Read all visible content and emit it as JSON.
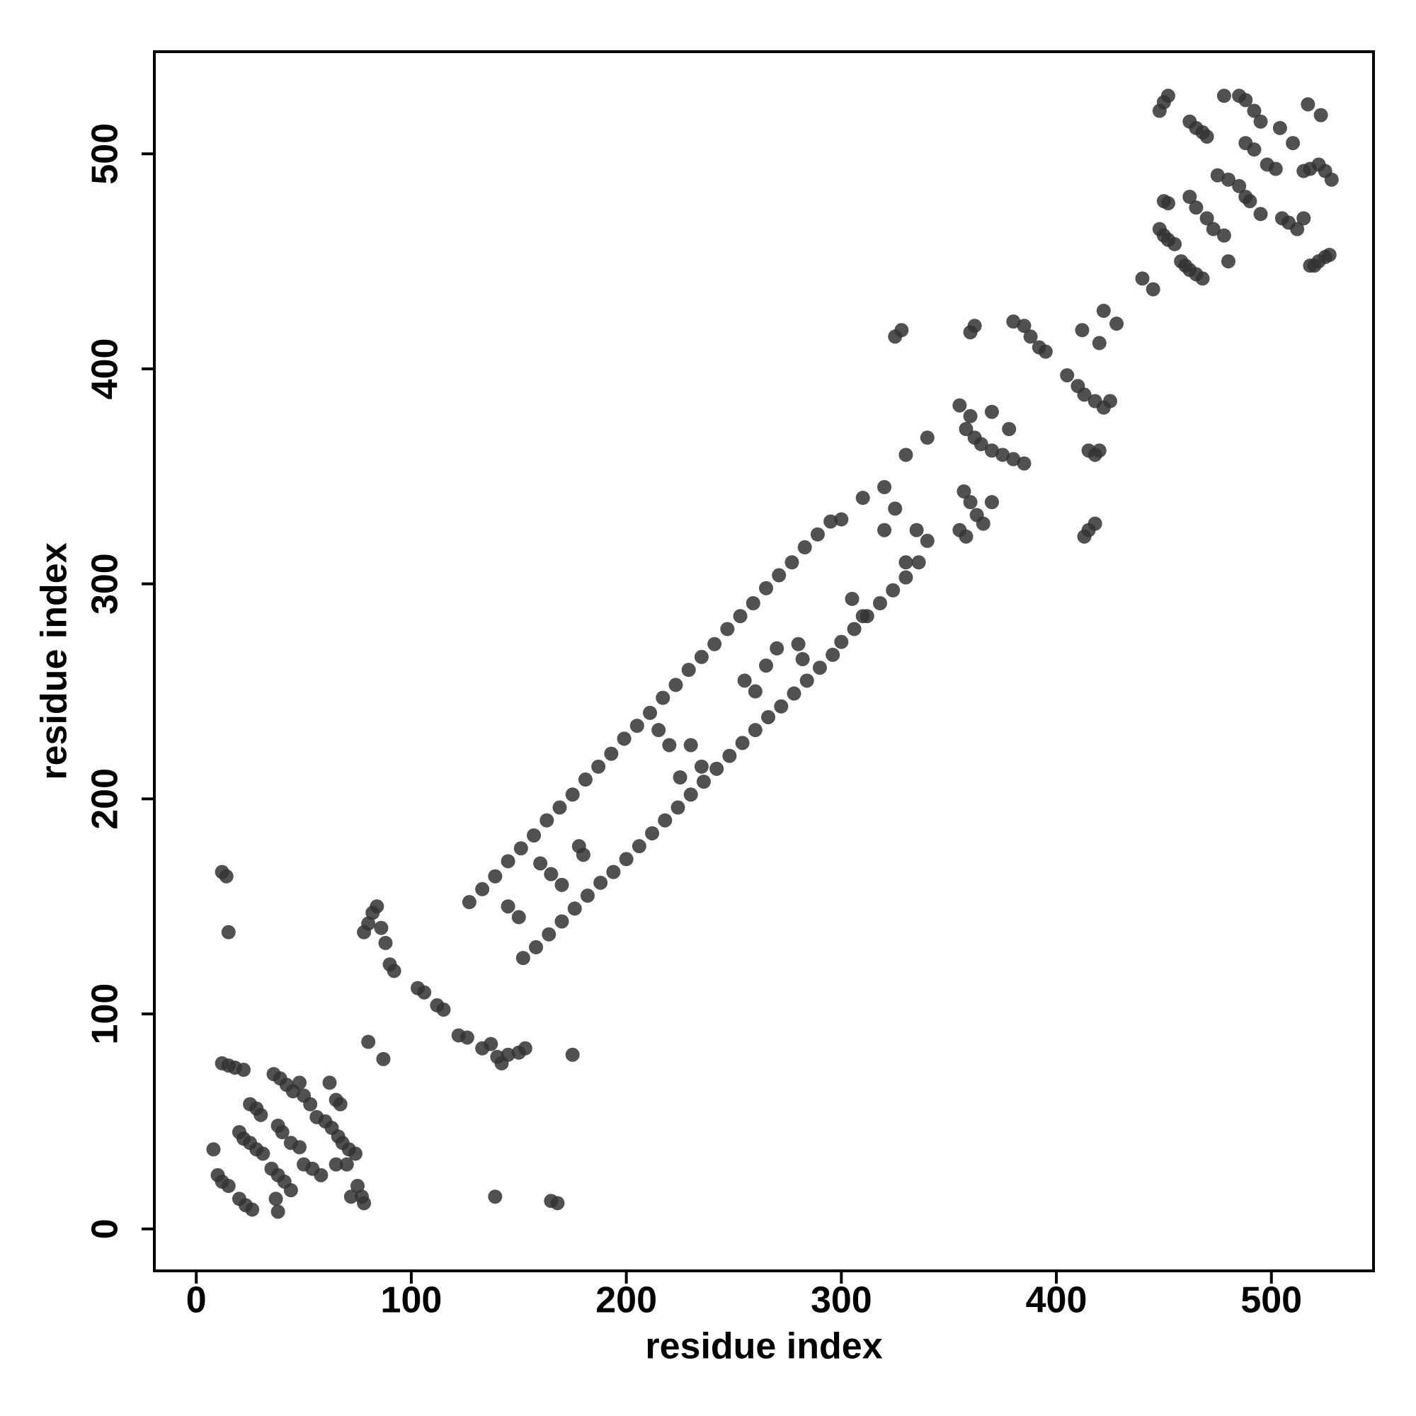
{
  "chart_data": {
    "type": "scatter",
    "x_label": "residue index",
    "y_label": "residue index",
    "color": "#333333",
    "xlim": [
      -19.5,
      547.5
    ],
    "ylim": [
      -19.5,
      547.5
    ],
    "xticks": [
      0,
      100,
      200,
      300,
      400,
      500
    ],
    "yticks": [
      0,
      100,
      200,
      300,
      400,
      500
    ],
    "x": [
      10,
      12,
      15,
      20,
      23,
      26,
      12,
      15,
      18,
      22,
      22,
      25,
      28,
      31,
      25,
      28,
      30,
      35,
      38,
      41,
      44,
      36,
      39,
      42,
      45,
      48,
      50,
      53,
      56,
      60,
      63,
      66,
      68,
      71,
      74,
      38,
      40,
      44,
      48,
      50,
      54,
      58,
      62,
      65,
      67,
      75,
      77,
      78,
      72,
      8,
      20,
      38,
      37,
      65,
      70,
      12,
      14,
      15,
      80,
      87,
      139,
      165,
      168,
      175,
      78,
      80,
      82,
      84,
      86,
      88,
      90,
      92,
      103,
      106,
      112,
      115,
      122,
      126,
      133,
      137,
      140,
      142,
      145,
      150,
      153,
      127,
      133,
      139,
      145,
      151,
      157,
      163,
      169,
      175,
      181,
      187,
      193,
      199,
      205,
      211,
      217,
      223,
      229,
      235,
      241,
      247,
      253,
      259,
      265,
      271,
      277,
      283,
      289,
      295,
      300,
      310,
      320,
      330,
      340,
      152,
      158,
      164,
      170,
      176,
      182,
      188,
      194,
      200,
      206,
      212,
      218,
      224,
      230,
      236,
      242,
      248,
      254,
      260,
      266,
      272,
      278,
      284,
      290,
      296,
      300,
      306,
      312,
      318,
      324,
      330,
      336,
      340,
      145,
      150,
      160,
      165,
      170,
      178,
      180,
      215,
      220,
      225,
      230,
      235,
      255,
      260,
      265,
      270,
      280,
      282,
      305,
      310,
      320,
      325,
      330,
      335,
      355,
      360,
      358,
      362,
      365,
      370,
      375,
      380,
      385,
      357,
      360,
      363,
      366,
      370,
      355,
      358,
      360,
      362,
      380,
      385,
      388,
      392,
      395,
      325,
      328,
      370,
      378,
      405,
      410,
      413,
      418,
      422,
      425,
      420,
      412,
      422,
      428,
      415,
      420,
      418,
      415,
      418,
      413,
      440,
      445,
      448,
      450,
      452,
      455,
      458,
      460,
      462,
      465,
      468,
      450,
      452,
      448,
      450,
      452,
      462,
      465,
      468,
      470,
      462,
      465,
      470,
      473,
      478,
      475,
      480,
      485,
      488,
      490,
      478,
      485,
      488,
      492,
      495,
      488,
      492,
      498,
      502,
      505,
      508,
      512,
      515,
      518,
      522,
      525,
      528,
      518,
      520,
      522,
      525,
      527,
      515,
      504,
      510,
      517,
      523,
      480,
      495
    ],
    "y": [
      25,
      22,
      20,
      14,
      11,
      9,
      77,
      76,
      75,
      74,
      42,
      40,
      37,
      35,
      58,
      56,
      53,
      28,
      25,
      22,
      18,
      72,
      70,
      67,
      64,
      68,
      62,
      58,
      52,
      50,
      47,
      43,
      40,
      37,
      35,
      48,
      45,
      40,
      38,
      30,
      28,
      25,
      68,
      60,
      58,
      20,
      15,
      12,
      15,
      37,
      45,
      8,
      14,
      30,
      30,
      166,
      164,
      138,
      87,
      79,
      15,
      13,
      12,
      81,
      138,
      142,
      147,
      150,
      140,
      133,
      123,
      120,
      112,
      110,
      104,
      102,
      90,
      89,
      84,
      86,
      80,
      77,
      81,
      82,
      84,
      152,
      158,
      164,
      171,
      177,
      183,
      190,
      196,
      202,
      209,
      215,
      221,
      228,
      234,
      240,
      247,
      253,
      260,
      266,
      272,
      279,
      285,
      291,
      298,
      304,
      310,
      317,
      323,
      329,
      330,
      340,
      345,
      360,
      368,
      126,
      131,
      137,
      143,
      149,
      155,
      161,
      166,
      172,
      178,
      184,
      190,
      196,
      202,
      208,
      214,
      220,
      226,
      232,
      238,
      243,
      249,
      255,
      261,
      267,
      273,
      279,
      285,
      291,
      297,
      303,
      310,
      320,
      150,
      145,
      170,
      165,
      160,
      178,
      174,
      232,
      225,
      210,
      225,
      215,
      255,
      250,
      262,
      270,
      272,
      265,
      293,
      285,
      325,
      335,
      310,
      325,
      383,
      378,
      372,
      368,
      365,
      362,
      360,
      358,
      356,
      343,
      338,
      332,
      328,
      338,
      325,
      322,
      417,
      420,
      422,
      420,
      415,
      410,
      408,
      415,
      418,
      380,
      372,
      397,
      392,
      388,
      385,
      382,
      385,
      412,
      418,
      427,
      421,
      362,
      362,
      360,
      325,
      328,
      322,
      442,
      437,
      465,
      462,
      460,
      458,
      450,
      448,
      446,
      444,
      442,
      478,
      477,
      520,
      524,
      527,
      515,
      512,
      510,
      508,
      480,
      475,
      470,
      465,
      462,
      490,
      488,
      485,
      480,
      478,
      527,
      527,
      525,
      520,
      515,
      505,
      502,
      495,
      493,
      470,
      468,
      465,
      492,
      493,
      495,
      492,
      488,
      448,
      448,
      450,
      452,
      453,
      470,
      512,
      505,
      523,
      518,
      450,
      472
    ]
  }
}
